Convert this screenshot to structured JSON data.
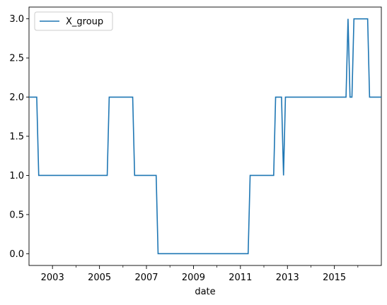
{
  "chart_data": {
    "type": "line",
    "xlabel": "date",
    "ylabel": "",
    "xlim": [
      "2002-01-01",
      "2016-12-31"
    ],
    "ylim": [
      -0.15,
      3.15
    ],
    "x_ticks": [
      {
        "date": "2003-01-01",
        "label": "2003"
      },
      {
        "date": "2005-01-01",
        "label": "2005"
      },
      {
        "date": "2007-01-01",
        "label": "2007"
      },
      {
        "date": "2009-01-01",
        "label": "2009"
      },
      {
        "date": "2011-01-01",
        "label": "2011"
      },
      {
        "date": "2013-01-01",
        "label": "2013"
      },
      {
        "date": "2015-01-01",
        "label": "2015"
      }
    ],
    "x_minor_ticks": [
      "2004-01-01",
      "2006-01-01",
      "2008-01-01",
      "2010-01-01",
      "2012-01-01",
      "2014-01-01",
      "2016-01-01"
    ],
    "y_ticks": [
      {
        "value": 0.0,
        "label": "0.0"
      },
      {
        "value": 0.5,
        "label": "0.5"
      },
      {
        "value": 1.0,
        "label": "1.0"
      },
      {
        "value": 1.5,
        "label": "1.5"
      },
      {
        "value": 2.0,
        "label": "2.0"
      },
      {
        "value": 2.5,
        "label": "2.5"
      },
      {
        "value": 3.0,
        "label": "3.0"
      }
    ],
    "legend": {
      "placement": "top-left",
      "entries": [
        "X_group"
      ]
    },
    "grid": false,
    "series": [
      {
        "name": "X_group",
        "color": "#1f77b4",
        "points": [
          {
            "x": "2002-01-01",
            "y": 2
          },
          {
            "x": "2002-05-01",
            "y": 2
          },
          {
            "x": "2002-06-01",
            "y": 1
          },
          {
            "x": "2005-05-01",
            "y": 1
          },
          {
            "x": "2005-06-01",
            "y": 2
          },
          {
            "x": "2006-06-01",
            "y": 2
          },
          {
            "x": "2006-07-01",
            "y": 1
          },
          {
            "x": "2007-06-01",
            "y": 1
          },
          {
            "x": "2007-07-01",
            "y": 0
          },
          {
            "x": "2011-05-01",
            "y": 0
          },
          {
            "x": "2011-06-01",
            "y": 1
          },
          {
            "x": "2012-06-01",
            "y": 1
          },
          {
            "x": "2012-07-01",
            "y": 2
          },
          {
            "x": "2012-10-01",
            "y": 2
          },
          {
            "x": "2012-11-01",
            "y": 1
          },
          {
            "x": "2012-12-01",
            "y": 2
          },
          {
            "x": "2015-07-01",
            "y": 2
          },
          {
            "x": "2015-08-01",
            "y": 3
          },
          {
            "x": "2015-09-01",
            "y": 2
          },
          {
            "x": "2015-10-01",
            "y": 2
          },
          {
            "x": "2015-11-01",
            "y": 3
          },
          {
            "x": "2016-06-01",
            "y": 3
          },
          {
            "x": "2016-07-01",
            "y": 2
          },
          {
            "x": "2016-12-31",
            "y": 2
          }
        ]
      }
    ]
  }
}
